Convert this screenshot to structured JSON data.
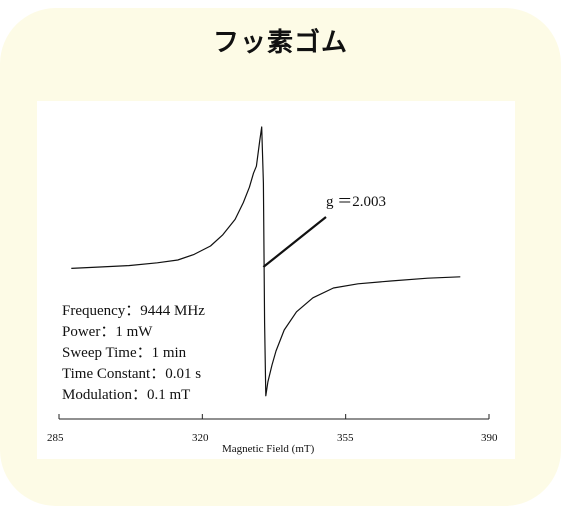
{
  "title": "フッ素ゴム",
  "chart_data": {
    "type": "line",
    "xlabel": "Magnetic Field (mT)",
    "ylabel": "",
    "xlim": [
      285,
      390
    ],
    "xticks": [
      285,
      320,
      355,
      390
    ],
    "xtick_labels": [
      "285",
      "320",
      "355",
      "390"
    ],
    "grid": false,
    "series": [
      {
        "x": [
          288,
          295,
          302,
          309,
          314,
          318,
          322,
          325,
          328,
          330,
          331.5,
          332.5,
          333.2,
          334,
          334.5,
          334.9,
          335.2,
          335.5,
          336,
          337,
          338,
          340,
          343,
          347,
          352,
          358,
          366,
          375,
          383
        ],
        "y": [
          -0.01,
          0.0,
          0.01,
          0.03,
          0.05,
          0.09,
          0.15,
          0.23,
          0.34,
          0.46,
          0.57,
          0.67,
          0.72,
          0.9,
          1.0,
          0.6,
          -0.4,
          -0.92,
          -0.82,
          -0.7,
          -0.6,
          -0.45,
          -0.32,
          -0.22,
          -0.15,
          -0.12,
          -0.1,
          -0.08,
          -0.07
        ]
      }
    ],
    "annotation": {
      "text": "g ＝2.003",
      "x": 334.9,
      "y": 0.0
    },
    "params": [
      "Frequency：9444 MHz",
      "Power：1 mW",
      "Sweep Time：1 min",
      "Time Constant：0.01 s",
      "Modulation：0.1 mT"
    ]
  }
}
